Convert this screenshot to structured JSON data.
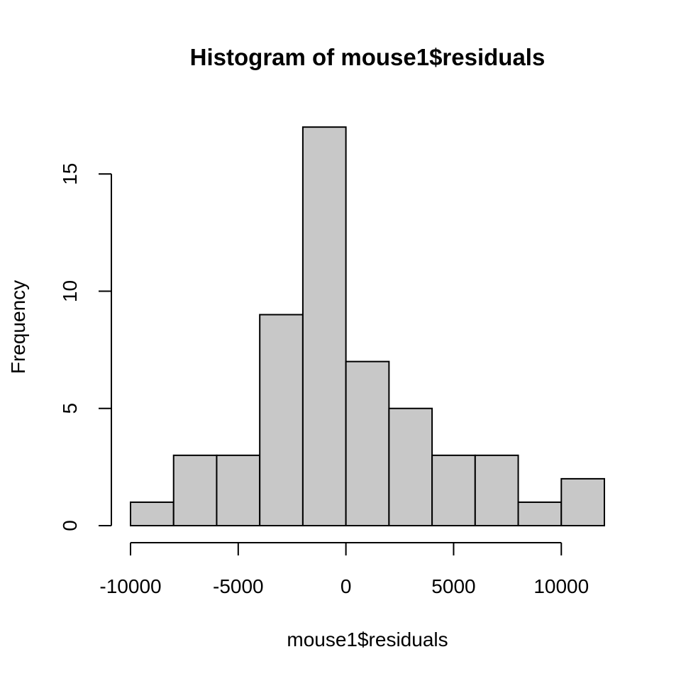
{
  "chart_data": {
    "type": "bar",
    "title": "Histogram of mouse1$residuals",
    "xlabel": "mouse1$residuals",
    "ylabel": "Frequency",
    "bins": [
      {
        "x0": -10000,
        "x1": -8000,
        "count": 1
      },
      {
        "x0": -8000,
        "x1": -6000,
        "count": 3
      },
      {
        "x0": -6000,
        "x1": -4000,
        "count": 3
      },
      {
        "x0": -4000,
        "x1": -2000,
        "count": 9
      },
      {
        "x0": -2000,
        "x1": 0,
        "count": 17
      },
      {
        "x0": 0,
        "x1": 2000,
        "count": 7
      },
      {
        "x0": 2000,
        "x1": 4000,
        "count": 5
      },
      {
        "x0": 4000,
        "x1": 6000,
        "count": 3
      },
      {
        "x0": 6000,
        "x1": 8000,
        "count": 3
      },
      {
        "x0": 8000,
        "x1": 10000,
        "count": 1
      },
      {
        "x0": 10000,
        "x1": 12000,
        "count": 2
      }
    ],
    "xlim": [
      -10000,
      12000
    ],
    "ylim": [
      0,
      17
    ],
    "x_ticks": [
      -10000,
      -5000,
      0,
      5000,
      10000
    ],
    "x_tick_labels": [
      "-10000",
      "-5000",
      "0",
      "5000",
      "10000"
    ],
    "y_ticks": [
      0,
      5,
      10,
      15
    ],
    "y_tick_labels": [
      "0",
      "5",
      "10",
      "15"
    ],
    "bar_color": "#c8c8c8",
    "grid": false,
    "legend": "none"
  }
}
